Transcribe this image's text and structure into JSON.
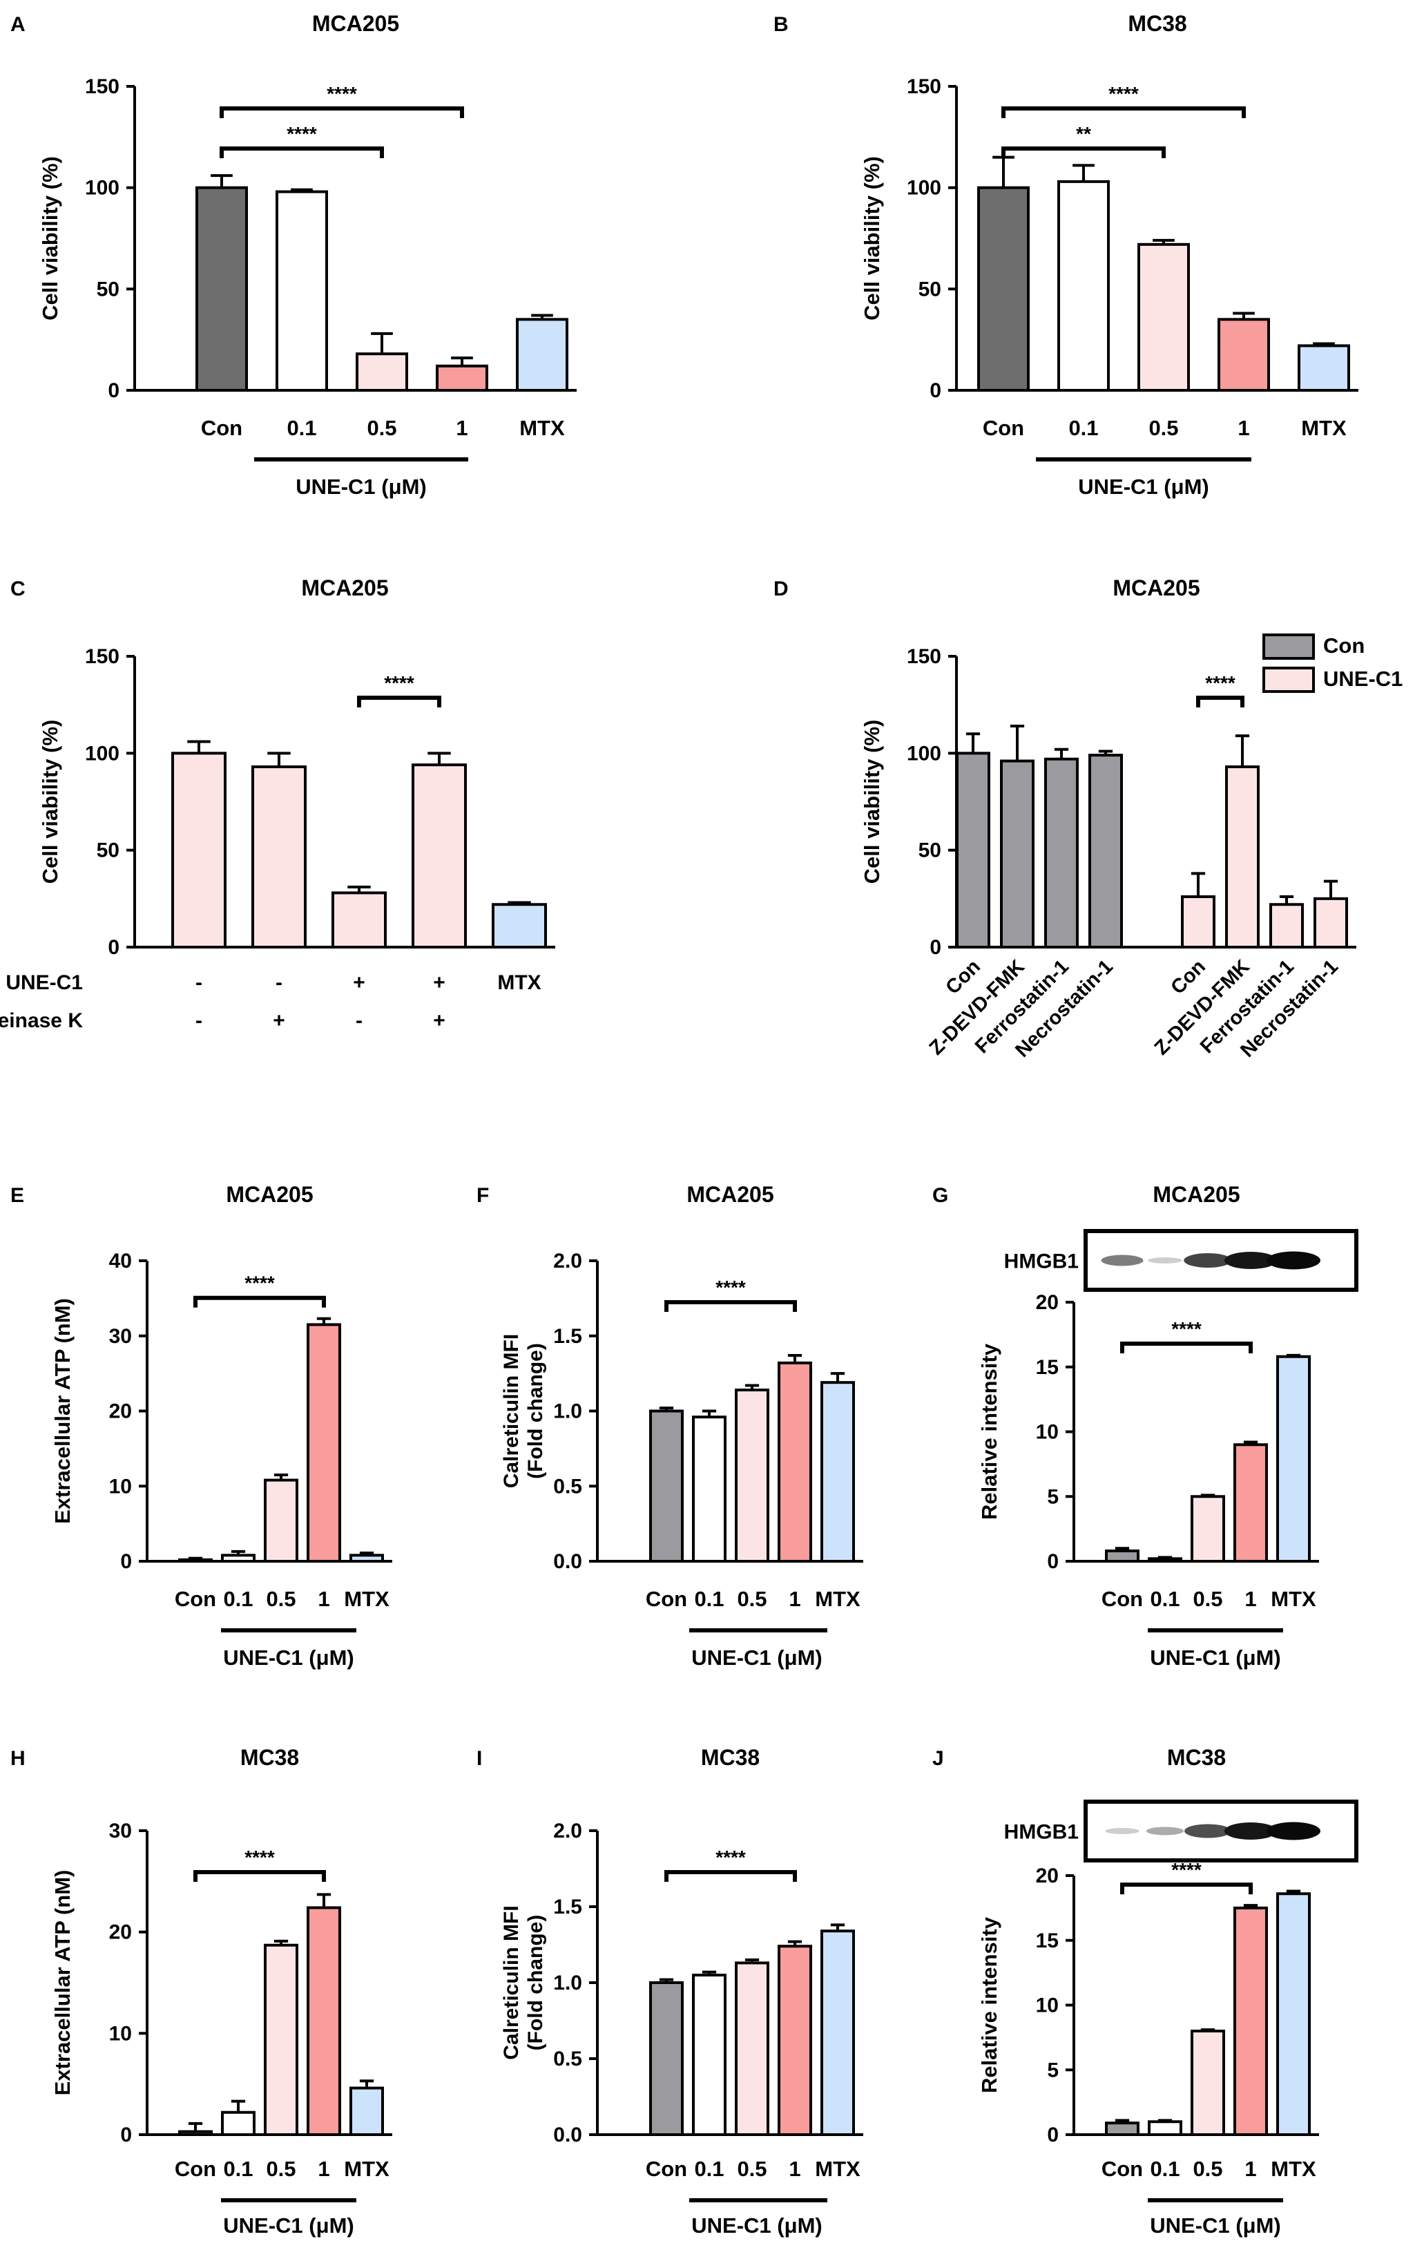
{
  "colors": {
    "dark_gray": "#6e6e6e",
    "gray": "#9b9b9f",
    "white": "#ffffff",
    "light_pink": "#fde4e4",
    "salmon": "#f89c9c",
    "light_blue": "#cde3fb",
    "black": "#000000"
  },
  "chart_data": [
    {
      "id": "A",
      "panel_letter": "A",
      "type": "bar",
      "title": "MCA205",
      "ylabel": "Cell viability (%)",
      "ylim": [
        0,
        150
      ],
      "yticks": [
        "0",
        "50",
        "100",
        "150"
      ],
      "categories": [
        "Con",
        "0.1",
        "0.5",
        "1",
        "MTX"
      ],
      "values": [
        100,
        98,
        18,
        12,
        35
      ],
      "errors": [
        6,
        1,
        10,
        4,
        2
      ],
      "colors": [
        "dark_gray",
        "white",
        "light_pink",
        "salmon",
        "light_blue"
      ],
      "group_label": "UNE-C1 (μM)",
      "significance": [
        {
          "from": 0,
          "to": 2,
          "label": "****"
        },
        {
          "from": 0,
          "to": 3,
          "label": "****"
        }
      ]
    },
    {
      "id": "B",
      "panel_letter": "B",
      "type": "bar",
      "title": "MC38",
      "ylabel": "Cell viability (%)",
      "ylim": [
        0,
        150
      ],
      "yticks": [
        "0",
        "50",
        "100",
        "150"
      ],
      "categories": [
        "Con",
        "0.1",
        "0.5",
        "1",
        "MTX"
      ],
      "values": [
        100,
        103,
        72,
        35,
        22
      ],
      "errors": [
        15,
        8,
        2,
        3,
        1
      ],
      "colors": [
        "dark_gray",
        "white",
        "light_pink",
        "salmon",
        "light_blue"
      ],
      "group_label": "UNE-C1 (μM)",
      "significance": [
        {
          "from": 0,
          "to": 2,
          "label": "**"
        },
        {
          "from": 0,
          "to": 3,
          "label": "****"
        }
      ]
    },
    {
      "id": "C",
      "panel_letter": "C",
      "type": "bar",
      "title": "MCA205",
      "ylabel": "Cell viability (%)",
      "ylim": [
        0,
        150
      ],
      "yticks": [
        "0",
        "50",
        "100",
        "150"
      ],
      "categories": [
        "",
        "",
        "",
        "",
        ""
      ],
      "values": [
        100,
        93,
        28,
        94,
        22
      ],
      "errors": [
        6,
        7,
        3,
        6,
        1
      ],
      "colors": [
        "light_pink",
        "light_pink",
        "light_pink",
        "light_pink",
        "light_blue"
      ],
      "row_labels": [
        "UNE-C1",
        "Proteinase K"
      ],
      "row_values": [
        [
          "-",
          "-",
          "+",
          "+",
          "MTX"
        ],
        [
          "-",
          "+",
          "-",
          "+",
          ""
        ]
      ],
      "significance": [
        {
          "from": 2,
          "to": 3,
          "label": "****"
        }
      ]
    },
    {
      "id": "D",
      "panel_letter": "D",
      "type": "bar",
      "title": "MCA205",
      "ylabel": "Cell viability (%)",
      "ylim": [
        0,
        150
      ],
      "yticks": [
        "0",
        "50",
        "100",
        "150"
      ],
      "categories": [
        "Con",
        "Z-DEVD-FMK",
        "Ferrostatin-1",
        "Necrostatin-1",
        "Con",
        "Z-DEVD-FMK",
        "Ferrostatin-1",
        "Necrostatin-1"
      ],
      "values": [
        100,
        96,
        97,
        99,
        26,
        93,
        22,
        25
      ],
      "errors": [
        10,
        18,
        5,
        2,
        12,
        16,
        4,
        9
      ],
      "colors": [
        "gray",
        "gray",
        "gray",
        "gray",
        "light_pink",
        "light_pink",
        "light_pink",
        "light_pink"
      ],
      "legend": [
        {
          "label": "Con",
          "color": "gray"
        },
        {
          "label": "UNE-C1",
          "color": "light_pink"
        }
      ],
      "significance": [
        {
          "from": 4,
          "to": 5,
          "label": "****"
        }
      ]
    },
    {
      "id": "E",
      "panel_letter": "E",
      "type": "bar",
      "title": "MCA205",
      "ylabel": "Extracellular ATP (nM)",
      "ylim": [
        0,
        40
      ],
      "yticks": [
        "0",
        "10",
        "20",
        "30",
        "40"
      ],
      "categories": [
        "Con",
        "0.1",
        "0.5",
        "1",
        "MTX"
      ],
      "values": [
        0.2,
        0.8,
        10.8,
        31.5,
        0.8
      ],
      "errors": [
        0.2,
        0.5,
        0.7,
        0.8,
        0.3
      ],
      "colors": [
        "dark_gray",
        "white",
        "light_pink",
        "salmon",
        "light_blue"
      ],
      "group_label": "UNE-C1 (μM)",
      "significance": [
        {
          "from": 0,
          "to": 3,
          "label": "****"
        }
      ]
    },
    {
      "id": "F",
      "panel_letter": "F",
      "type": "bar",
      "title": "MCA205",
      "ylabel": "Calreticulin MFI",
      "ylabel2": "(Fold change)",
      "ylim": [
        0,
        2
      ],
      "yticks": [
        "0.0",
        "0.5",
        "1.0",
        "1.5",
        "2.0"
      ],
      "categories": [
        "Con",
        "0.1",
        "0.5",
        "1",
        "MTX"
      ],
      "values": [
        1.0,
        0.96,
        1.14,
        1.32,
        1.19
      ],
      "errors": [
        0.02,
        0.04,
        0.03,
        0.05,
        0.06
      ],
      "colors": [
        "gray",
        "white",
        "light_pink",
        "salmon",
        "light_blue"
      ],
      "group_label": "UNE-C1 (μM)",
      "significance": [
        {
          "from": 0,
          "to": 3,
          "label": "****"
        }
      ]
    },
    {
      "id": "G",
      "panel_letter": "G",
      "type": "bar",
      "title": "MCA205",
      "ylabel": "Relative intensity",
      "ylim": [
        0,
        20
      ],
      "yticks": [
        "0",
        "5",
        "10",
        "15",
        "20"
      ],
      "categories": [
        "Con",
        "0.1",
        "0.5",
        "1",
        "MTX"
      ],
      "values": [
        0.8,
        0.2,
        5.0,
        9.0,
        15.8
      ],
      "errors": [
        0.2,
        0.1,
        0.1,
        0.2,
        0.1
      ],
      "colors": [
        "gray",
        "white",
        "light_pink",
        "salmon",
        "light_blue"
      ],
      "group_label": "UNE-C1 (μM)",
      "blot_label": "HMGB1",
      "blot_intensity": [
        0.5,
        0.15,
        0.75,
        0.95,
        1.0
      ],
      "significance": [
        {
          "from": 0,
          "to": 3,
          "label": "****"
        }
      ]
    },
    {
      "id": "H",
      "panel_letter": "H",
      "type": "bar",
      "title": "MC38",
      "ylabel": "Extracellular ATP (nM)",
      "ylim": [
        0,
        30
      ],
      "yticks": [
        "0",
        "10",
        "20",
        "30"
      ],
      "categories": [
        "Con",
        "0.1",
        "0.5",
        "1",
        "MTX"
      ],
      "values": [
        0.3,
        2.2,
        18.7,
        22.4,
        4.6
      ],
      "errors": [
        0.8,
        1.1,
        0.4,
        1.3,
        0.7
      ],
      "colors": [
        "dark_gray",
        "white",
        "light_pink",
        "salmon",
        "light_blue"
      ],
      "group_label": "UNE-C1 (μM)",
      "significance": [
        {
          "from": 0,
          "to": 3,
          "label": "****"
        }
      ]
    },
    {
      "id": "I",
      "panel_letter": "I",
      "type": "bar",
      "title": "MC38",
      "ylabel": "Calreticulin MFI",
      "ylabel2": "(Fold change)",
      "ylim": [
        0,
        2
      ],
      "yticks": [
        "0.0",
        "0.5",
        "1.0",
        "1.5",
        "2.0"
      ],
      "categories": [
        "Con",
        "0.1",
        "0.5",
        "1",
        "MTX"
      ],
      "values": [
        1.0,
        1.05,
        1.13,
        1.24,
        1.34
      ],
      "errors": [
        0.02,
        0.02,
        0.02,
        0.03,
        0.04
      ],
      "colors": [
        "gray",
        "white",
        "light_pink",
        "salmon",
        "light_blue"
      ],
      "group_label": "UNE-C1 (μM)",
      "significance": [
        {
          "from": 0,
          "to": 3,
          "label": "****"
        }
      ]
    },
    {
      "id": "J",
      "panel_letter": "J",
      "type": "bar",
      "title": "MC38",
      "ylabel": "Relative intensity",
      "ylim": [
        0,
        20
      ],
      "yticks": [
        "0",
        "5",
        "10",
        "15",
        "20"
      ],
      "categories": [
        "Con",
        "0.1",
        "0.5",
        "1",
        "MTX"
      ],
      "values": [
        0.9,
        1.0,
        8.0,
        17.5,
        18.6
      ],
      "errors": [
        0.2,
        0.1,
        0.1,
        0.2,
        0.2
      ],
      "colors": [
        "gray",
        "white",
        "light_pink",
        "salmon",
        "light_blue"
      ],
      "group_label": "UNE-C1 (μM)",
      "blot_label": "HMGB1",
      "blot_intensity": [
        0.15,
        0.3,
        0.7,
        0.95,
        1.0
      ],
      "significance": [
        {
          "from": 0,
          "to": 3,
          "label": "****"
        }
      ]
    }
  ]
}
